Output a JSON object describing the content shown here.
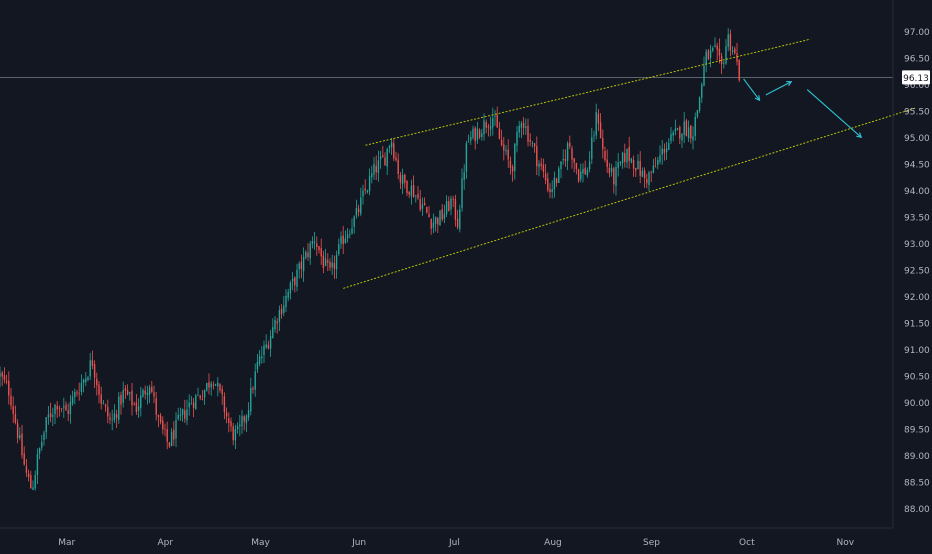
{
  "colors": {
    "background": "#131722",
    "axis_text": "#b2b5be",
    "axis_line": "#2a2e39",
    "candle_up": "#26a69a",
    "candle_down": "#ef5350",
    "channel_line": "#c8d400",
    "projection_arrow": "#2ec4d4",
    "last_price_line": "#787b86",
    "last_price_badge_bg": "#ffffff",
    "last_price_badge_text": "#131722"
  },
  "chart_data": {
    "type": "candlestick",
    "title": "",
    "xlabel": "",
    "ylabel": "",
    "ylim": [
      87.8,
      97.25
    ],
    "y_ticks": [
      "88.00",
      "88.50",
      "89.00",
      "89.50",
      "90.00",
      "90.50",
      "91.00",
      "91.50",
      "92.00",
      "92.50",
      "93.00",
      "93.50",
      "94.00",
      "94.50",
      "95.00",
      "95.50",
      "96.00",
      "96.50",
      "97.00"
    ],
    "x_tick_labels": [
      {
        "label": "Mar",
        "date": "2021-03-01"
      },
      {
        "label": "Apr",
        "date": "2021-04-01"
      },
      {
        "label": "May",
        "date": "2021-05-01"
      },
      {
        "label": "Jun",
        "date": "2021-06-01"
      },
      {
        "label": "Jul",
        "date": "2021-07-01"
      },
      {
        "label": "Aug",
        "date": "2021-08-01"
      },
      {
        "label": "Sep",
        "date": "2021-09-01"
      },
      {
        "label": "Oct",
        "date": "2021-10-01"
      },
      {
        "label": "Nov",
        "date": "2021-11-01"
      }
    ],
    "x_range": [
      "2021-02-08",
      "2021-11-16"
    ],
    "grid": false,
    "last_price": {
      "value": 96.13,
      "label": "96.13"
    },
    "price_path": [
      [
        "2021-02-08",
        90.5
      ],
      [
        "2021-02-11",
        90.2
      ],
      [
        "2021-02-14",
        89.3
      ],
      [
        "2021-02-16",
        88.7
      ],
      [
        "2021-02-18",
        88.35
      ],
      [
        "2021-02-20",
        89.0
      ],
      [
        "2021-02-23",
        89.7
      ],
      [
        "2021-02-26",
        90.0
      ],
      [
        "2021-03-01",
        89.8
      ],
      [
        "2021-03-04",
        90.2
      ],
      [
        "2021-03-07",
        90.5
      ],
      [
        "2021-03-09",
        90.8
      ],
      [
        "2021-03-12",
        90.0
      ],
      [
        "2021-03-15",
        89.6
      ],
      [
        "2021-03-19",
        90.2
      ],
      [
        "2021-03-23",
        89.9
      ],
      [
        "2021-03-27",
        90.4
      ],
      [
        "2021-03-30",
        89.6
      ],
      [
        "2021-04-02",
        89.2
      ],
      [
        "2021-04-05",
        89.6
      ],
      [
        "2021-04-09",
        90.0
      ],
      [
        "2021-04-13",
        90.2
      ],
      [
        "2021-04-16",
        90.5
      ],
      [
        "2021-04-19",
        90.0
      ],
      [
        "2021-04-22",
        89.4
      ],
      [
        "2021-04-24",
        89.4
      ],
      [
        "2021-04-27",
        89.9
      ],
      [
        "2021-04-30",
        90.7
      ],
      [
        "2021-05-03",
        91.1
      ],
      [
        "2021-05-06",
        91.6
      ],
      [
        "2021-05-10",
        92.1
      ],
      [
        "2021-05-14",
        92.6
      ],
      [
        "2021-05-18",
        93.1
      ],
      [
        "2021-05-21",
        92.6
      ],
      [
        "2021-05-23",
        92.4
      ],
      [
        "2021-05-27",
        93.1
      ],
      [
        "2021-05-31",
        93.5
      ],
      [
        "2021-06-03",
        94.0
      ],
      [
        "2021-06-06",
        94.4
      ],
      [
        "2021-06-09",
        94.6
      ],
      [
        "2021-06-11",
        95.0
      ],
      [
        "2021-06-14",
        94.2
      ],
      [
        "2021-06-18",
        94.0
      ],
      [
        "2021-06-21",
        93.7
      ],
      [
        "2021-06-24",
        93.4
      ],
      [
        "2021-06-27",
        93.5
      ],
      [
        "2021-06-30",
        93.8
      ],
      [
        "2021-07-02",
        93.4
      ],
      [
        "2021-07-05",
        94.9
      ],
      [
        "2021-07-08",
        95.1
      ],
      [
        "2021-07-13",
        95.4
      ],
      [
        "2021-07-16",
        94.8
      ],
      [
        "2021-07-19",
        94.4
      ],
      [
        "2021-07-22",
        95.4
      ],
      [
        "2021-07-27",
        94.6
      ],
      [
        "2021-07-31",
        94.0
      ],
      [
        "2021-08-03",
        94.3
      ],
      [
        "2021-08-06",
        94.9
      ],
      [
        "2021-08-09",
        94.3
      ],
      [
        "2021-08-12",
        94.4
      ],
      [
        "2021-08-15",
        95.5
      ],
      [
        "2021-08-17",
        94.6
      ],
      [
        "2021-08-20",
        94.2
      ],
      [
        "2021-08-24",
        94.7
      ],
      [
        "2021-08-27",
        94.5
      ],
      [
        "2021-08-30",
        94.2
      ],
      [
        "2021-09-02",
        94.4
      ],
      [
        "2021-09-05",
        94.8
      ],
      [
        "2021-09-08",
        95.0
      ],
      [
        "2021-09-11",
        95.2
      ],
      [
        "2021-09-14",
        95.1
      ],
      [
        "2021-09-16",
        95.7
      ],
      [
        "2021-09-18",
        96.5
      ],
      [
        "2021-09-21",
        96.6
      ],
      [
        "2021-09-23",
        96.3
      ],
      [
        "2021-09-25",
        96.9
      ],
      [
        "2021-09-27",
        96.6
      ],
      [
        "2021-09-29",
        96.1
      ]
    ],
    "channel_lines": [
      {
        "name": "",
        "from": [
          "2021-06-03",
          94.85
        ],
        "to": [
          "2021-10-21",
          96.85
        ]
      },
      {
        "name": "",
        "from": [
          "2021-05-27",
          92.15
        ],
        "to": [
          "2021-11-23",
          95.55
        ]
      }
    ],
    "projection_arrows": [
      {
        "from": [
          "2021-09-30",
          96.1
        ],
        "to": [
          "2021-10-05",
          95.7
        ]
      },
      {
        "from": [
          "2021-10-07",
          95.8
        ],
        "to": [
          "2021-10-15",
          96.05
        ]
      },
      {
        "from": [
          "2021-10-20",
          95.9
        ],
        "to": [
          "2021-11-06",
          95.0
        ]
      }
    ]
  }
}
